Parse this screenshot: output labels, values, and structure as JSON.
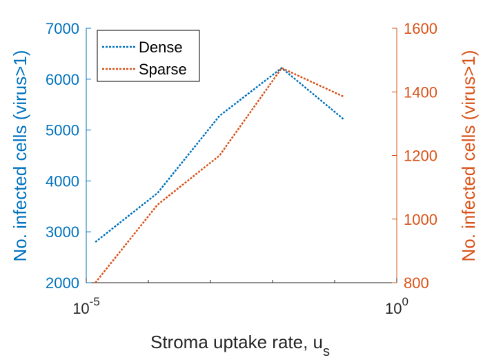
{
  "chart_data": {
    "type": "line",
    "xlabel": "Stroma uptake rate, u",
    "xlabel_sub": "s",
    "ylabel_left": "No. infected cells (virus>1)",
    "ylabel_right": "No. infected cells (virus>1)",
    "x_scale": "log",
    "xlim": [
      1e-05,
      1
    ],
    "x_ticks": [
      {
        "base": "10",
        "exp": "-5"
      },
      {
        "base": "10",
        "exp": "0"
      }
    ],
    "ylim_left": [
      2000,
      7000
    ],
    "ylim_right": [
      800,
      1600
    ],
    "yticks_left": [
      "2000",
      "3000",
      "4000",
      "5000",
      "6000",
      "7000"
    ],
    "yticks_right": [
      "800",
      "1000",
      "1200",
      "1400",
      "1600"
    ],
    "x": [
      1.4e-05,
      0.00014,
      0.0014,
      0.014,
      0.14
    ],
    "series": [
      {
        "name": "Dense",
        "axis": "left",
        "color": "#0072BD",
        "values": [
          2800,
          3760,
          5280,
          6220,
          5210
        ]
      },
      {
        "name": "Sparse",
        "axis": "right",
        "color": "#D95319",
        "values": [
          800,
          1045,
          1200,
          1475,
          1385
        ]
      }
    ],
    "legend_position": "top-left",
    "grid": false,
    "colors": {
      "left_axis": "#0072BD",
      "right_axis": "#D95319"
    }
  }
}
